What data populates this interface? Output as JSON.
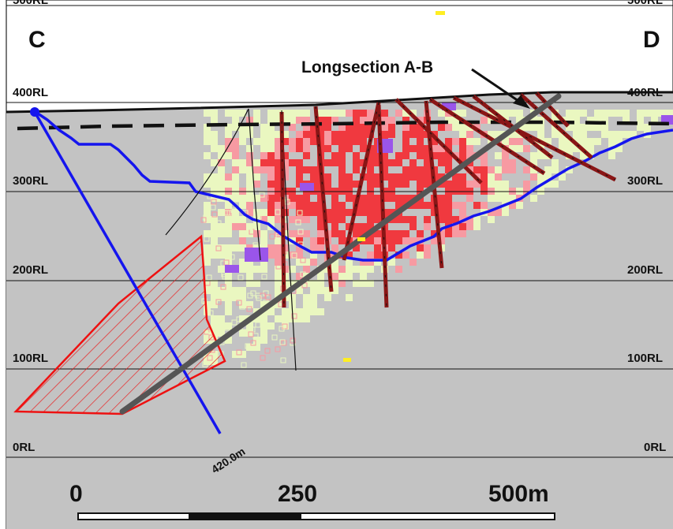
{
  "section": {
    "left_label": "C",
    "right_label": "D",
    "top_partial_label": "500RL",
    "rl_levels": [
      "400RL",
      "300RL",
      "200RL",
      "100RL",
      "0RL"
    ],
    "longsection_label": "Longsection A-B",
    "drillhole_length_label": "420.0m"
  },
  "scale_bar": {
    "labels": [
      "0",
      "250",
      "500m"
    ]
  },
  "colors": {
    "background_rock": "#c3c3c3",
    "above_surface": "#ffffff",
    "grade_low": "#eaf7c0",
    "grade_mid": "#f79aa2",
    "grade_high": "#f0393f",
    "grade_outlier": "#9a55ea",
    "oxidation_line": "#1515ee",
    "planned_hole": "#1515ee",
    "longsection_line": "#555555",
    "target_zone": "#ee1111",
    "drill_trace": "#8a1616"
  }
}
